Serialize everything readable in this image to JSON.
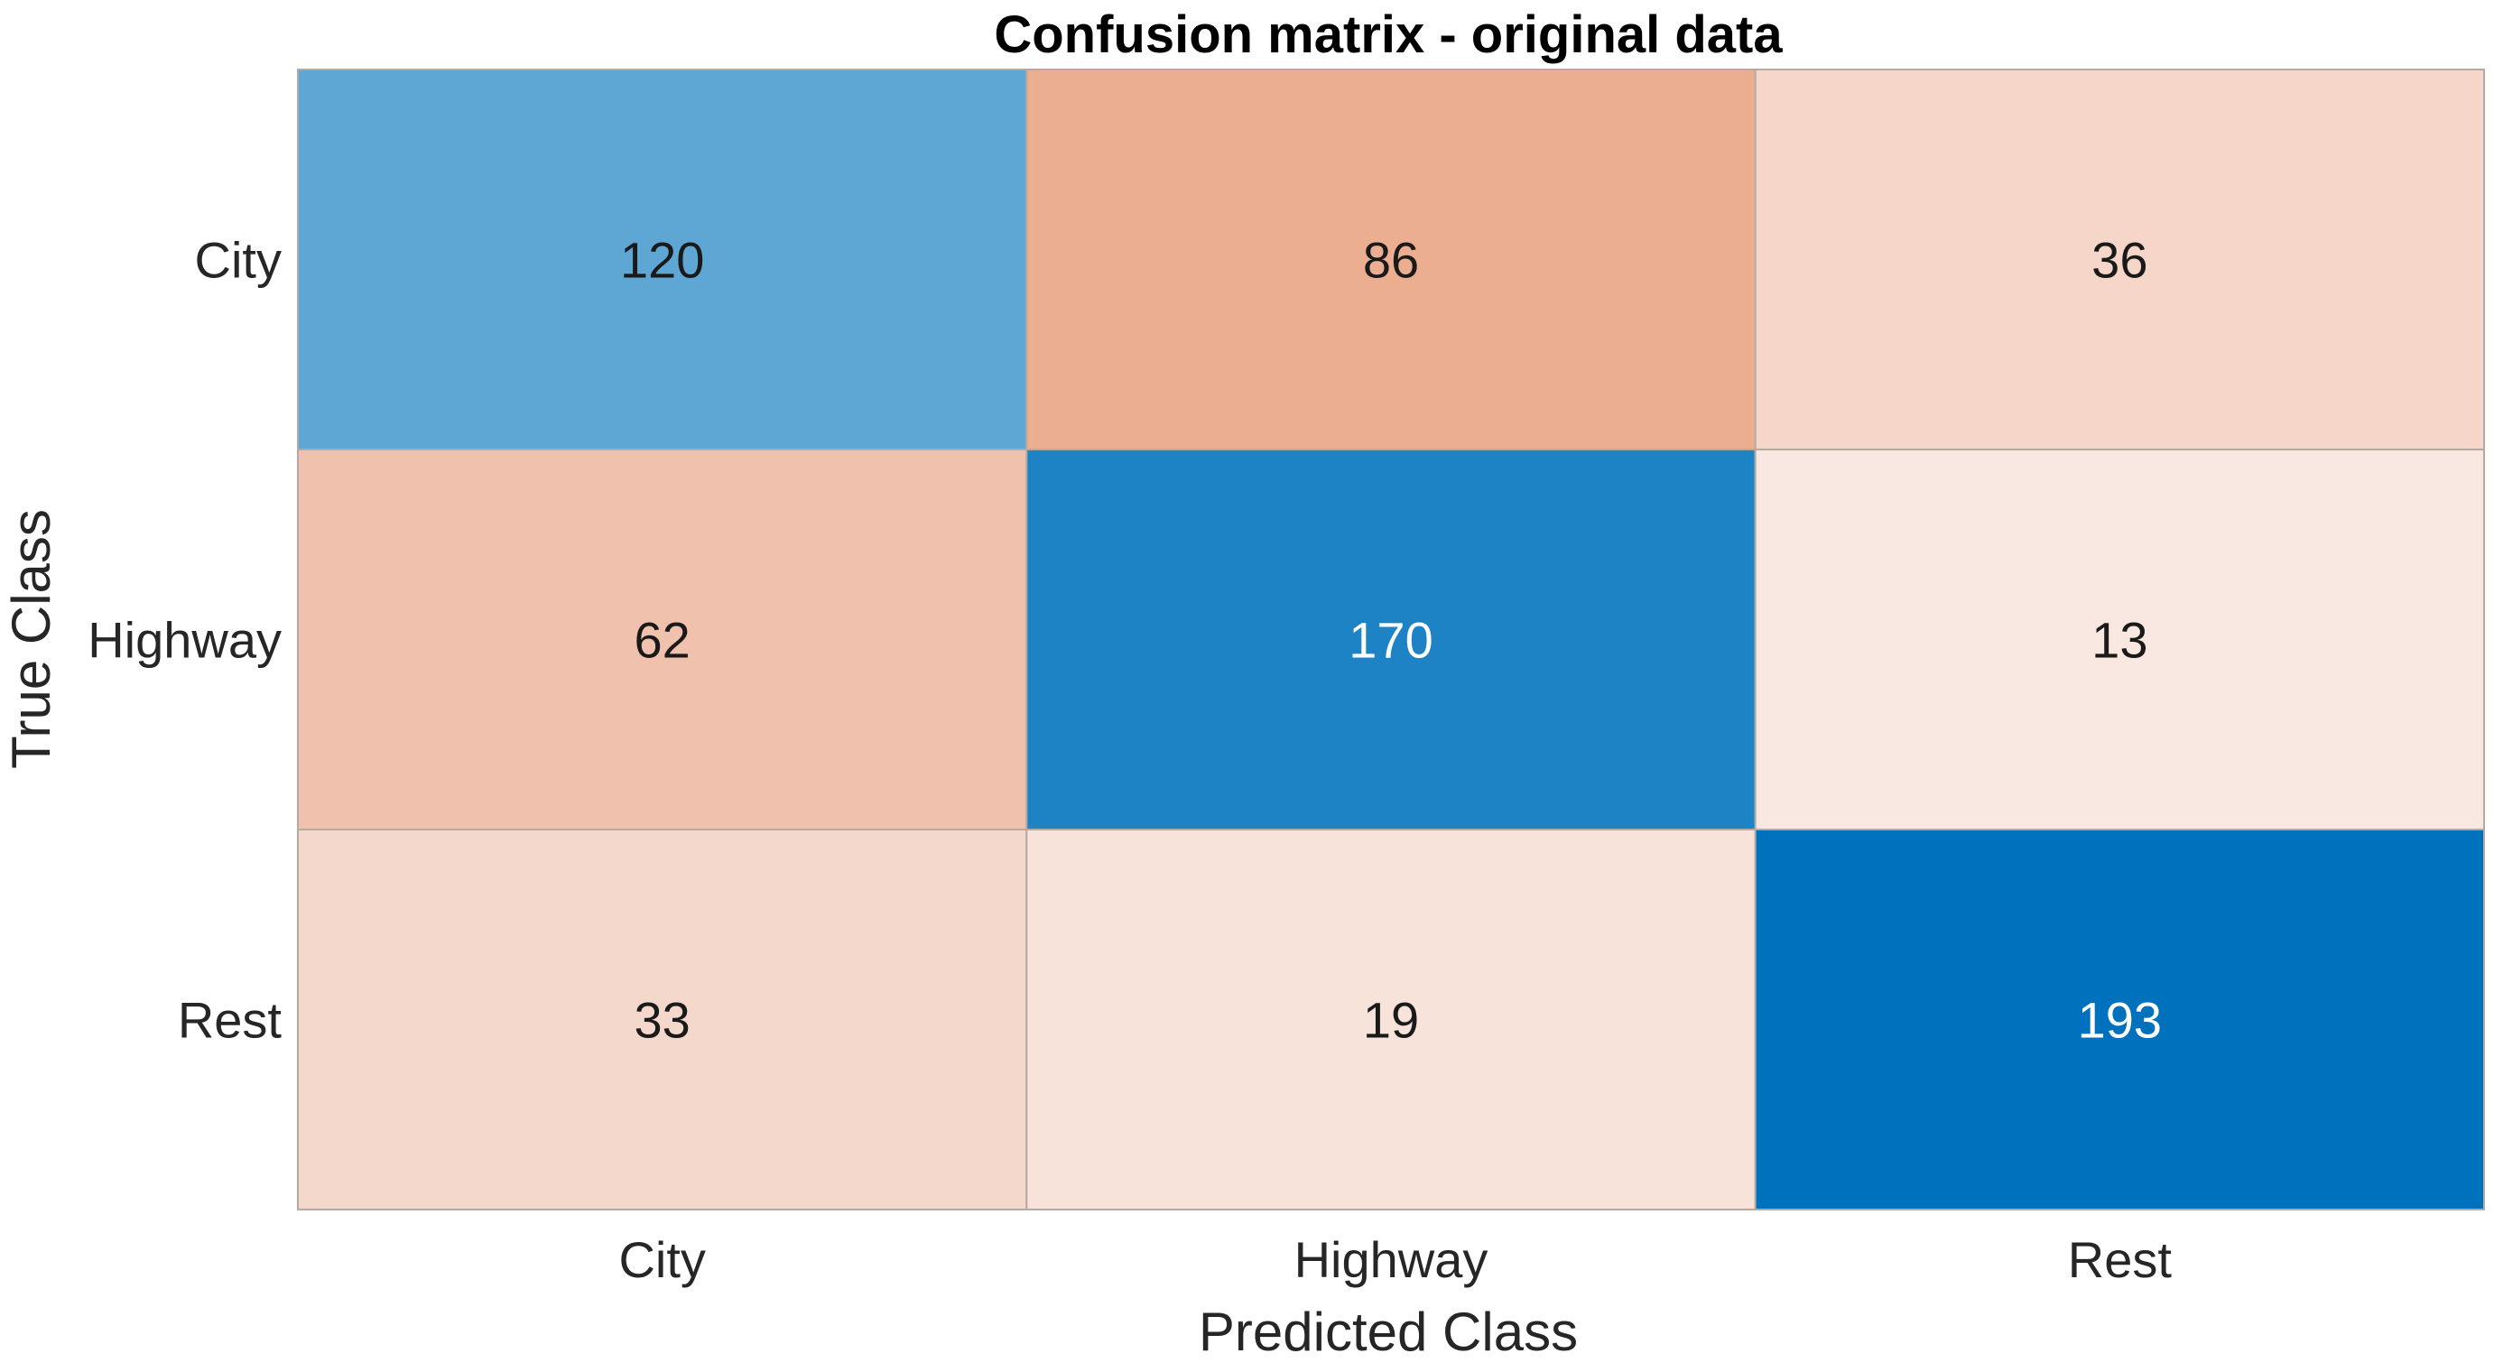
{
  "chart_data": {
    "type": "heatmap",
    "title": "Confusion matrix - original data",
    "xlabel": "Predicted Class",
    "ylabel": "True Class",
    "x_categories": [
      "City",
      "Highway",
      "Rest"
    ],
    "y_categories": [
      "City",
      "Highway",
      "Rest"
    ],
    "values": [
      [
        120,
        86,
        36
      ],
      [
        62,
        170,
        13
      ],
      [
        33,
        19,
        193
      ]
    ],
    "colors": {
      "diagonal_high": "#0072BD",
      "diagonal_low": "#5EA7D5",
      "offdiag_high": "#ECAE91",
      "offdiag_low": "#F9E8E2",
      "light_text": "#FFFFFF",
      "dark_text": "#1A1A1A",
      "grid": "#B5A9A4"
    }
  }
}
